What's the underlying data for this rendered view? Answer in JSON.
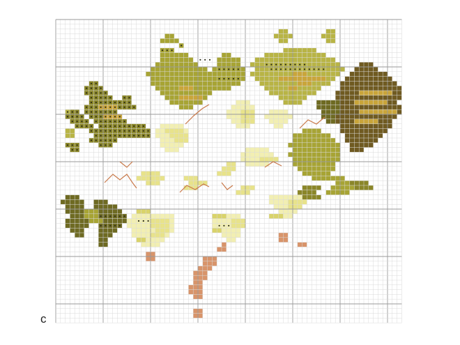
{
  "figure": {
    "label": "c",
    "kind": "cross-stitch chart of grape leaves and green grapes"
  },
  "colors": {
    "background": "#ffffff",
    "grid_fine": "#d9d9d9",
    "grid_major": "#9a9a9a",
    "leaf_dark": "#6e6a22",
    "leaf_olive": "#8a8628",
    "leaf_mid": "#a7a434",
    "leaf_light": "#b8b445",
    "leaf_brown": "#6f5a21",
    "leaf_vein": "#c9a53a",
    "grape_pale": "#f2efb2",
    "grape_light": "#e8e38a",
    "grape_mid": "#d9d36a",
    "tendril": "#c9794a",
    "stem": "#d8946a",
    "symbol": "#2a2a1a"
  }
}
